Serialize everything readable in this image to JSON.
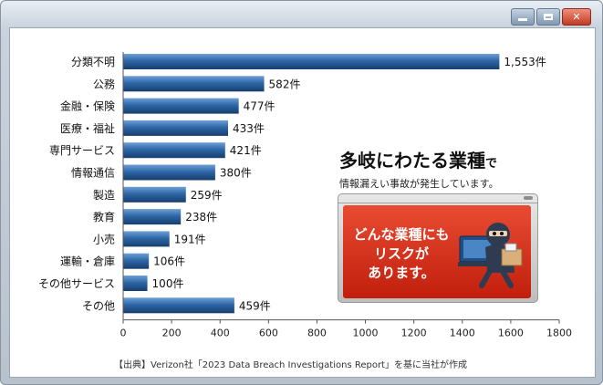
{
  "chart_data": {
    "type": "bar",
    "orientation": "horizontal",
    "categories": [
      "分類不明",
      "公務",
      "金融・保険",
      "医療・福祉",
      "専門サービス",
      "情報通信",
      "製造",
      "教育",
      "小売",
      "運輸・倉庫",
      "その他サービス",
      "その他"
    ],
    "values": [
      1553,
      582,
      477,
      433,
      421,
      380,
      259,
      238,
      191,
      106,
      100,
      459
    ],
    "value_labels": [
      "1,553件",
      "582件",
      "477件",
      "433件",
      "421件",
      "380件",
      "259件",
      "238件",
      "191件",
      "106件",
      "100件",
      "459件"
    ],
    "xlim": [
      0,
      1800
    ],
    "xticks": [
      0,
      200,
      400,
      600,
      800,
      1000,
      1200,
      1400,
      1600,
      1800
    ],
    "grid": false,
    "bar_color": "#2e67a6"
  },
  "source_note": "【出典】Verizon社「2023 Data Breach Investigations Report」を基に当社が作成",
  "promo": {
    "headline": "多岐にわたる業種",
    "headline_suffix": "で",
    "subtext": "情報漏えい事故が発生しています。",
    "panel_lines": [
      "どんな業種にも",
      "リスクが",
      "あります。"
    ]
  },
  "window": {
    "controls": [
      "minimize",
      "maximize",
      "close"
    ],
    "close_glyph": "✕"
  }
}
